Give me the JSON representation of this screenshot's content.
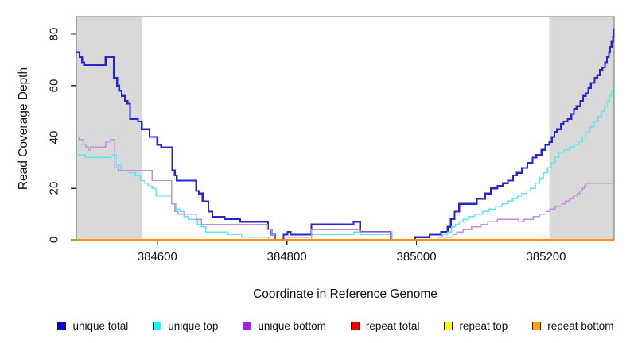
{
  "axes": {
    "x_label": "Coordinate in Reference Genome",
    "y_label": "Read Coverage Depth"
  },
  "chart_data": {
    "type": "line",
    "step": true,
    "grid": false,
    "legend_position": "bottom",
    "xlim": [
      384475,
      385305
    ],
    "ylim": [
      0,
      87
    ],
    "x_ticks": [
      384600,
      384800,
      385000,
      385200
    ],
    "y_ticks": [
      0,
      20,
      40,
      60,
      80
    ],
    "shade_color": "#d9d9d9",
    "box_color": "#6e6e6e",
    "tick_color": "#2a2a2a",
    "shaded_regions": [
      [
        384475,
        384577
      ],
      [
        385205,
        385305
      ]
    ],
    "series": [
      {
        "name": "unique total",
        "color": "#2525d2",
        "swatch": "#0000ee",
        "width": 2.2,
        "points": [
          [
            384475,
            73
          ],
          [
            384480,
            71
          ],
          [
            384484,
            69
          ],
          [
            384487,
            68
          ],
          [
            384520,
            71
          ],
          [
            384533,
            63
          ],
          [
            384538,
            60
          ],
          [
            384541,
            58
          ],
          [
            384545,
            56
          ],
          [
            384550,
            54
          ],
          [
            384554,
            53
          ],
          [
            384558,
            47
          ],
          [
            384570,
            46
          ],
          [
            384576,
            43
          ],
          [
            384588,
            40
          ],
          [
            384600,
            37
          ],
          [
            384606,
            36
          ],
          [
            384623,
            27
          ],
          [
            384627,
            25
          ],
          [
            384630,
            23
          ],
          [
            384660,
            19
          ],
          [
            384664,
            18
          ],
          [
            384670,
            15
          ],
          [
            384679,
            11
          ],
          [
            384685,
            9
          ],
          [
            384704,
            8
          ],
          [
            384728,
            7
          ],
          [
            384771,
            4
          ],
          [
            384776,
            2
          ],
          [
            384782,
            0
          ],
          [
            384795,
            2
          ],
          [
            384801,
            3
          ],
          [
            384806,
            2
          ],
          [
            384838,
            6
          ],
          [
            384903,
            7
          ],
          [
            384913,
            3
          ],
          [
            384960,
            0
          ],
          [
            384998,
            1
          ],
          [
            385020,
            2
          ],
          [
            385038,
            3
          ],
          [
            385048,
            5
          ],
          [
            385053,
            8
          ],
          [
            385059,
            11
          ],
          [
            385066,
            14
          ],
          [
            385093,
            16
          ],
          [
            385106,
            18
          ],
          [
            385115,
            20
          ],
          [
            385125,
            21
          ],
          [
            385133,
            22
          ],
          [
            385141,
            23
          ],
          [
            385149,
            25
          ],
          [
            385155,
            26
          ],
          [
            385163,
            28
          ],
          [
            385171,
            30
          ],
          [
            385179,
            32
          ],
          [
            385185,
            33
          ],
          [
            385193,
            35
          ],
          [
            385199,
            37
          ],
          [
            385205,
            38
          ],
          [
            385209,
            40
          ],
          [
            385213,
            42
          ],
          [
            385217,
            43
          ],
          [
            385223,
            45
          ],
          [
            385227,
            46
          ],
          [
            385233,
            47
          ],
          [
            385239,
            49
          ],
          [
            385243,
            51
          ],
          [
            385247,
            52
          ],
          [
            385253,
            54
          ],
          [
            385257,
            56
          ],
          [
            385261,
            57
          ],
          [
            385265,
            59
          ],
          [
            385269,
            61
          ],
          [
            385275,
            63
          ],
          [
            385279,
            64
          ],
          [
            385283,
            66
          ],
          [
            385287,
            67
          ],
          [
            385291,
            69
          ],
          [
            385294,
            71
          ],
          [
            385297,
            73
          ],
          [
            385299,
            75
          ],
          [
            385301,
            77
          ],
          [
            385303,
            79
          ],
          [
            385304,
            82
          ]
        ]
      },
      {
        "name": "unique top",
        "color": "#5fe6e8",
        "swatch": "#00ffff",
        "width": 1.4,
        "points": [
          [
            384475,
            33
          ],
          [
            384489,
            32
          ],
          [
            384529,
            33
          ],
          [
            384537,
            29
          ],
          [
            384544,
            27
          ],
          [
            384556,
            26
          ],
          [
            384566,
            25
          ],
          [
            384574,
            23
          ],
          [
            384580,
            22
          ],
          [
            384586,
            21
          ],
          [
            384592,
            20
          ],
          [
            384598,
            17
          ],
          [
            384622,
            14
          ],
          [
            384629,
            12
          ],
          [
            384635,
            11
          ],
          [
            384641,
            9
          ],
          [
            384648,
            8
          ],
          [
            384662,
            6
          ],
          [
            384668,
            5
          ],
          [
            384675,
            3
          ],
          [
            384709,
            2
          ],
          [
            384730,
            1
          ],
          [
            384772,
            0
          ],
          [
            384838,
            2
          ],
          [
            384903,
            3
          ],
          [
            384913,
            2
          ],
          [
            384960,
            0
          ],
          [
            385034,
            1
          ],
          [
            385040,
            2
          ],
          [
            385048,
            3
          ],
          [
            385054,
            5
          ],
          [
            385060,
            6
          ],
          [
            385066,
            7
          ],
          [
            385072,
            8
          ],
          [
            385080,
            9
          ],
          [
            385090,
            10
          ],
          [
            385102,
            11
          ],
          [
            385112,
            12
          ],
          [
            385122,
            13
          ],
          [
            385132,
            14
          ],
          [
            385140,
            15
          ],
          [
            385148,
            16
          ],
          [
            385156,
            17
          ],
          [
            385162,
            18
          ],
          [
            385170,
            19
          ],
          [
            385176,
            20
          ],
          [
            385184,
            22
          ],
          [
            385190,
            24
          ],
          [
            385196,
            26
          ],
          [
            385202,
            28
          ],
          [
            385208,
            30
          ],
          [
            385214,
            32
          ],
          [
            385220,
            34
          ],
          [
            385228,
            35
          ],
          [
            385236,
            36
          ],
          [
            385244,
            37
          ],
          [
            385250,
            38
          ],
          [
            385256,
            40
          ],
          [
            385262,
            42
          ],
          [
            385268,
            44
          ],
          [
            385274,
            46
          ],
          [
            385280,
            48
          ],
          [
            385286,
            50
          ],
          [
            385290,
            52
          ],
          [
            385294,
            54
          ],
          [
            385298,
            56
          ],
          [
            385301,
            58
          ],
          [
            385303,
            60
          ]
        ]
      },
      {
        "name": "unique bottom",
        "color": "#bd8ee2",
        "swatch": "#a020f0",
        "width": 1.4,
        "points": [
          [
            384475,
            40
          ],
          [
            384479,
            39
          ],
          [
            384486,
            37
          ],
          [
            384490,
            36
          ],
          [
            384494,
            35
          ],
          [
            384497,
            36
          ],
          [
            384520,
            38
          ],
          [
            384528,
            39
          ],
          [
            384534,
            28
          ],
          [
            384540,
            27
          ],
          [
            384592,
            23
          ],
          [
            384622,
            14
          ],
          [
            384627,
            11
          ],
          [
            384632,
            10
          ],
          [
            384660,
            8
          ],
          [
            384668,
            6
          ],
          [
            384770,
            4
          ],
          [
            384776,
            2
          ],
          [
            384782,
            0
          ],
          [
            384793,
            1
          ],
          [
            384838,
            4
          ],
          [
            384913,
            3
          ],
          [
            384962,
            0
          ],
          [
            385044,
            1
          ],
          [
            385056,
            2
          ],
          [
            385062,
            3
          ],
          [
            385072,
            4
          ],
          [
            385085,
            5
          ],
          [
            385100,
            6
          ],
          [
            385110,
            7
          ],
          [
            385125,
            8
          ],
          [
            385158,
            7
          ],
          [
            385166,
            8
          ],
          [
            385180,
            9
          ],
          [
            385190,
            10
          ],
          [
            385200,
            11
          ],
          [
            385206,
            12
          ],
          [
            385214,
            13
          ],
          [
            385224,
            14
          ],
          [
            385230,
            15
          ],
          [
            385236,
            16
          ],
          [
            385242,
            17
          ],
          [
            385248,
            18
          ],
          [
            385252,
            19
          ],
          [
            385256,
            20
          ],
          [
            385259,
            21
          ],
          [
            385262,
            22
          ],
          [
            385304,
            22
          ]
        ]
      },
      {
        "name": "repeat total",
        "color": "#dd0000",
        "swatch": "#ee0000",
        "width": 1.2,
        "points": [
          [
            384475,
            0
          ],
          [
            385305,
            0
          ]
        ]
      },
      {
        "name": "repeat top",
        "color": "#ffff00",
        "swatch": "#ffff00",
        "width": 1.2,
        "points": [
          [
            384475,
            0
          ],
          [
            385305,
            0
          ]
        ]
      },
      {
        "name": "repeat bottom",
        "color": "#ff9300",
        "swatch": "#ffa500",
        "width": 1.8,
        "points": [
          [
            384475,
            0
          ],
          [
            385305,
            0
          ]
        ]
      }
    ]
  }
}
